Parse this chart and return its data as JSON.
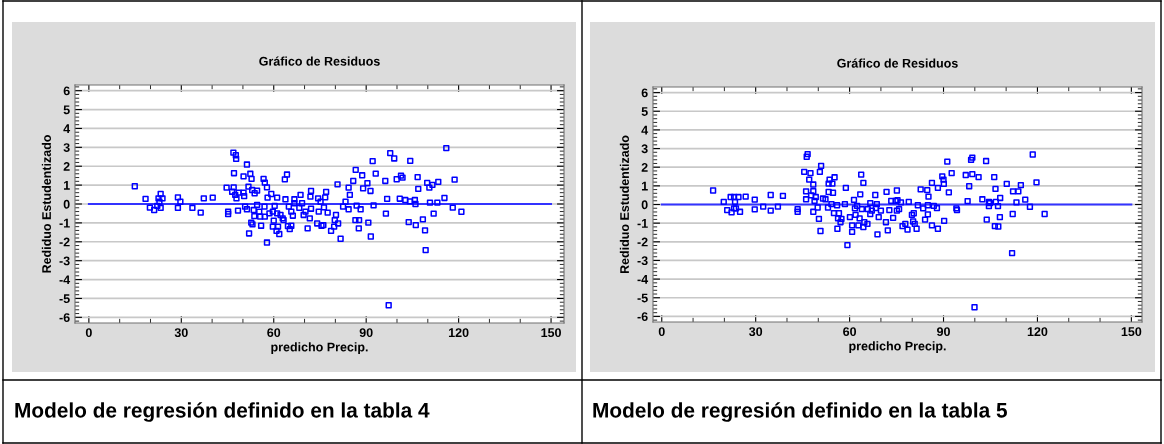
{
  "chart_data": [
    {
      "type": "scatter",
      "title": "Gráfico de Residuos",
      "xlabel": "predicho Precip.",
      "ylabel": "Rediduo Estudentizado",
      "annotations": [
        "Modelo de regresión definido en la tabla 4"
      ],
      "color": "#0000ff",
      "marker": "square",
      "grid": "y",
      "xlim": [
        -4.5,
        154.2
      ],
      "ylim": [
        -6.3,
        6.3
      ],
      "xticks": [
        0,
        30,
        60,
        90,
        120,
        150
      ],
      "yticks": [
        -6,
        -5,
        -4,
        -3,
        -2,
        -1,
        0,
        1,
        2,
        3,
        4,
        5,
        6
      ],
      "ref_lines": [
        {
          "axis": "y",
          "value": 0,
          "color": "#3333ff"
        }
      ],
      "x": [
        14.9,
        18.4,
        19.8,
        21.2,
        22.2,
        22.6,
        23.3,
        23.9,
        23.3,
        22.9,
        28.9,
        28.9,
        29.7,
        33.6,
        36.3,
        37.3,
        40.2,
        44.7,
        45.2,
        45.2,
        46.9,
        47.7,
        47.8,
        47.1,
        47.0,
        46.5,
        47.5,
        47.9,
        48.6,
        48.4,
        50.2,
        50.2,
        50.4,
        51.3,
        50.7,
        51.8,
        52.4,
        52.8,
        53.0,
        53.8,
        54.6,
        51.3,
        52.0,
        52.7,
        53.1,
        53.5,
        53.7,
        54.6,
        55.3,
        55.6,
        55.9,
        56.7,
        57.1,
        57.0,
        57.8,
        57.8,
        57.1,
        58.0,
        58.6,
        59.2,
        59.7,
        60.0,
        59.7,
        60.3,
        61.1,
        61.1,
        61.4,
        60.9,
        61.8,
        62.2,
        62.9,
        63.2,
        63.6,
        64.3,
        63.8,
        64.6,
        65.2,
        65.7,
        64.9,
        65.7,
        66.2,
        66.7,
        66.7,
        68.3,
        68.7,
        69.2,
        69.7,
        70.3,
        71.0,
        71.7,
        71.9,
        72.1,
        72.1,
        74.1,
        74.4,
        74.6,
        75.2,
        75.5,
        76.1,
        76.7,
        77.0,
        76.3,
        77.5,
        78.6,
        79.6,
        79.8,
        80.2,
        80.7,
        80.9,
        81.7,
        82.5,
        83.3,
        84.3,
        84.3,
        84.7,
        85.8,
        86.6,
        86.5,
        87.7,
        87.6,
        86.9,
        88.2,
        88.7,
        89.0,
        90.4,
        90.7,
        91.4,
        91.5,
        92.1,
        92.4,
        93.1,
        96.2,
        96.4,
        96.8,
        97.3,
        97.8,
        99.1,
        99.9,
        100.9,
        101.3,
        101.8,
        102.7,
        103.8,
        104.2,
        104.3,
        105.8,
        106.0,
        106.1,
        106.7,
        106.9,
        108.4,
        109.1,
        109.3,
        109.8,
        110.5,
        110.7,
        111.5,
        111.9,
        113.1,
        113.4,
        115.4,
        116.0,
        118.1,
        118.7,
        120.9
      ],
      "values": [
        0.94,
        0.27,
        -0.19,
        -0.32,
        -0.1,
        0.3,
        0.53,
        0.3,
        -0.2,
        0.12,
        0.35,
        -0.2,
        0.12,
        -0.2,
        -0.46,
        0.3,
        0.34,
        0.87,
        -0.4,
        -0.53,
        2.72,
        2.58,
        2.39,
        1.63,
        0.88,
        0.65,
        0.48,
        0.3,
        0.6,
        -0.35,
        1.46,
        0.6,
        0.42,
        2.09,
        -0.14,
        0.92,
        1.6,
        1.33,
        0.74,
        0.57,
        0.71,
        -0.28,
        -1.56,
        -0.99,
        -1.08,
        -0.32,
        -0.64,
        -0.05,
        -0.4,
        -0.67,
        -1.15,
        1.33,
        1.13,
        -0.14,
        0.88,
        -2.04,
        -0.67,
        0.34,
        -0.5,
        0.53,
        -0.4,
        -0.88,
        -1.2,
        -0.1,
        0.34,
        -0.5,
        -1.2,
        -1.42,
        -1.59,
        -0.58,
        -0.76,
        -0.85,
        1.3,
        1.56,
        0.25,
        -1.17,
        -1.33,
        -1.15,
        -0.14,
        -0.4,
        -0.62,
        0.25,
        0.04,
        -0.2,
        0.48,
        0.04,
        -0.58,
        -0.4,
        -1.29,
        -0.76,
        0.39,
        0.69,
        -0.25,
        -1.03,
        0.3,
        -0.4,
        0.12,
        -1.15,
        -1.12,
        0.35,
        0.64,
        -0.18,
        -0.46,
        -1.42,
        -1.2,
        -0.85,
        -0.58,
        1.04,
        -1.03,
        -1.84,
        -0.14,
        0.12,
        -0.28,
        0.87,
        0.48,
        1.22,
        1.81,
        -0.85,
        -0.85,
        -1.29,
        -0.09,
        -0.28,
        1.52,
        0.83,
        1.1,
        -0.99,
        0.69,
        -1.72,
        2.27,
        -0.07,
        1.61,
        1.22,
        -0.51,
        0.27,
        -5.36,
        2.69,
        2.41,
        1.31,
        0.28,
        1.5,
        1.4,
        0.21,
        -0.96,
        0.14,
        2.28,
        0.21,
        0.0,
        -1.12,
        1.42,
        0.8,
        -0.81,
        -1.4,
        -2.44,
        1.12,
        0.87,
        0.07,
        1.01,
        -0.51,
        0.07,
        1.17,
        0.32,
        2.96,
        -0.19,
        1.29,
        -0.41
      ]
    },
    {
      "type": "scatter",
      "title": "Gráfico de Residuos",
      "xlabel": "predicho Precip.",
      "ylabel": "Rediduo Estudentizado",
      "annotations": [
        "Modelo de regresión definido en la tabla 5"
      ],
      "color": "#0000ff",
      "marker": "square",
      "grid": "y",
      "xlim": [
        -2.8,
        153.4
      ],
      "ylim": [
        -6.3,
        6.3
      ],
      "xticks": [
        0,
        30,
        60,
        90,
        120,
        150
      ],
      "yticks": [
        -6,
        -5,
        -4,
        -3,
        -2,
        -1,
        0,
        1,
        2,
        3,
        4,
        5,
        6
      ],
      "ref_lines": [
        {
          "axis": "y",
          "value": 0,
          "color": "#3333ff"
        }
      ],
      "x": [
        16.4,
        19.8,
        20.9,
        22.0,
        22.3,
        23.1,
        23.4,
        23.7,
        23.1,
        24.5,
        25.0,
        26.8,
        29.7,
        29.7,
        32.4,
        34.8,
        34.8,
        37.1,
        38.7,
        43.4,
        43.4,
        45.5,
        46.1,
        46.1,
        46.3,
        46.6,
        47.1,
        47.5,
        47.7,
        48.4,
        48.4,
        48.8,
        48.4,
        49.2,
        49.8,
        50.2,
        50.5,
        50.7,
        50.9,
        51.5,
        52.3,
        53.1,
        53.3,
        53.6,
        53.3,
        54.2,
        54.5,
        54.7,
        55.0,
        55.2,
        56.0,
        56.3,
        56.1,
        56.6,
        57.1,
        57.4,
        58.5,
        58.8,
        59.3,
        60.1,
        60.8,
        60.8,
        61.4,
        61.7,
        61.9,
        62.4,
        62.8,
        63.2,
        63.4,
        63.7,
        63.9,
        64.4,
        64.4,
        64.7,
        65.7,
        65.8,
        66.6,
        66.6,
        67.1,
        68.2,
        68.4,
        68.7,
        68.9,
        69.3,
        70.0,
        71.8,
        71.6,
        72.2,
        72.7,
        73.3,
        73.9,
        74.7,
        75.1,
        75.1,
        75.3,
        75.8,
        76.4,
        76.9,
        77.8,
        78.5,
        78.9,
        79.9,
        80.5,
        80.3,
        80.8,
        81.4,
        81.8,
        82.7,
        83.5,
        84.1,
        84.8,
        85.0,
        85.2,
        85.0,
        86.3,
        86.3,
        86.9,
        87.9,
        88.2,
        88.2,
        89.6,
        90.0,
        90.1,
        90.2,
        91.2,
        91.7,
        92.6,
        94.1,
        94.3,
        97.1,
        97.7,
        98.2,
        98.8,
        99.2,
        99.2,
        99.9,
        101.2,
        102.4,
        103.6,
        103.8,
        104.5,
        104.8,
        104.5,
        106.2,
        106.4,
        106.6,
        106.7,
        107.4,
        107.5,
        108.0,
        108.1,
        110.2,
        112.1,
        112.2,
        111.9,
        113.3,
        113.9,
        114.7,
        116.1,
        117.6,
        118.5,
        119.7,
        122.3
      ],
      "values": [
        0.75,
        0.14,
        -0.3,
        0.4,
        -0.42,
        0.4,
        0.14,
        -0.21,
        -0.21,
        0.4,
        -0.39,
        0.42,
        0.26,
        -0.26,
        -0.11,
        0.51,
        -0.33,
        -0.11,
        0.46,
        -0.25,
        -0.39,
        1.75,
        0.7,
        0.28,
        2.56,
        2.7,
        1.33,
        1.68,
        0.49,
        1.07,
        0.72,
        0.19,
        -0.39,
        0.4,
        -0.16,
        -0.77,
        1.75,
        -1.42,
        2.07,
        0.32,
        0.28,
        -0.16,
        1.12,
        1.33,
        0.67,
        0.02,
        1.12,
        0.63,
        -0.46,
        1.46,
        -0.04,
        -0.74,
        -1.3,
        -0.47,
        -0.95,
        -0.77,
        0.02,
        0.89,
        -2.18,
        -0.68,
        -1.12,
        -1.47,
        0.25,
        -0.21,
        -0.56,
        -0.07,
        -1.12,
        -0.74,
        0.54,
        1.6,
        -0.25,
        1.16,
        -1.21,
        -0.95,
        -1.04,
        -0.25,
        0.07,
        -0.51,
        -0.33,
        0.51,
        -0.19,
        0.02,
        -1.6,
        -0.68,
        -0.33,
        0.68,
        -0.95,
        -1.39,
        -0.3,
        0.19,
        -0.72,
        0.19,
        0.75,
        -0.33,
        0.23,
        -0.25,
        0.11,
        -1.16,
        -1.04,
        -1.35,
        0.14,
        -0.56,
        -0.47,
        -0.91,
        -1.04,
        -1.3,
        -0.04,
        0.81,
        -0.21,
        -0.81,
        0.77,
        -0.04,
        0.42,
        -0.53,
        -1.12,
        1.16,
        -0.07,
        -0.19,
        0.89,
        -1.3,
        1.51,
        1.33,
        1.11,
        -0.88,
        2.3,
        0.65,
        1.68,
        -0.21,
        -0.3,
        1.58,
        0.18,
        0.98,
        2.39,
        2.51,
        1.63,
        -5.51,
        1.47,
        0.28,
        2.33,
        -0.81,
        0.14,
        0.07,
        -0.09,
        1.47,
        -1.16,
        0.84,
        0.14,
        -0.09,
        -1.18,
        -0.68,
        0.35,
        1.11,
        -0.51,
        0.7,
        -2.61,
        0.11,
        0.7,
        1.04,
        0.26,
        -0.12,
        2.68,
        1.19,
        -0.51
      ]
    }
  ]
}
